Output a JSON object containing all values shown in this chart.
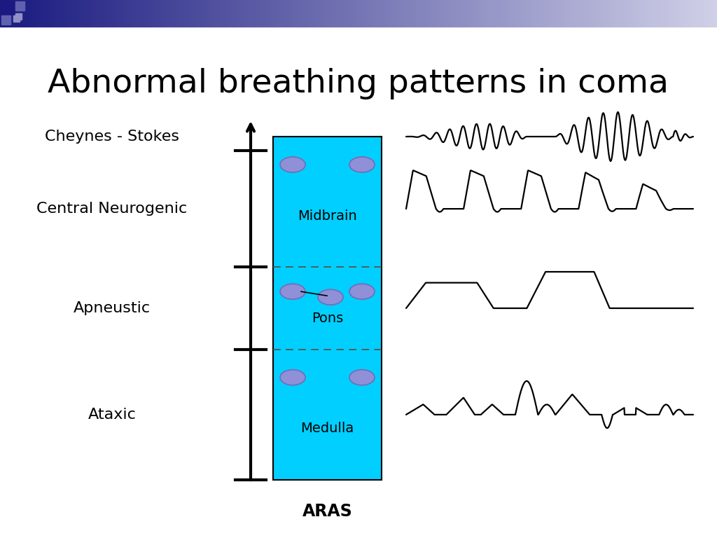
{
  "title": "Abnormal breathing patterns in coma",
  "title_fontsize": 34,
  "title_color": "#000000",
  "slide_background": "#ffffff",
  "labels": [
    "Cheynes - Stokes",
    "Central Neurogenic",
    "Apneustic",
    "Ataxic"
  ],
  "brain_color": "#00cfff",
  "aras_label": "ARAS",
  "header_gradient_left": "#1a1a80",
  "header_gradient_right": "#d0d0e8",
  "header_square1": "#1a1a80",
  "header_square2": "#6060b0",
  "header_square3": "#9090c8"
}
